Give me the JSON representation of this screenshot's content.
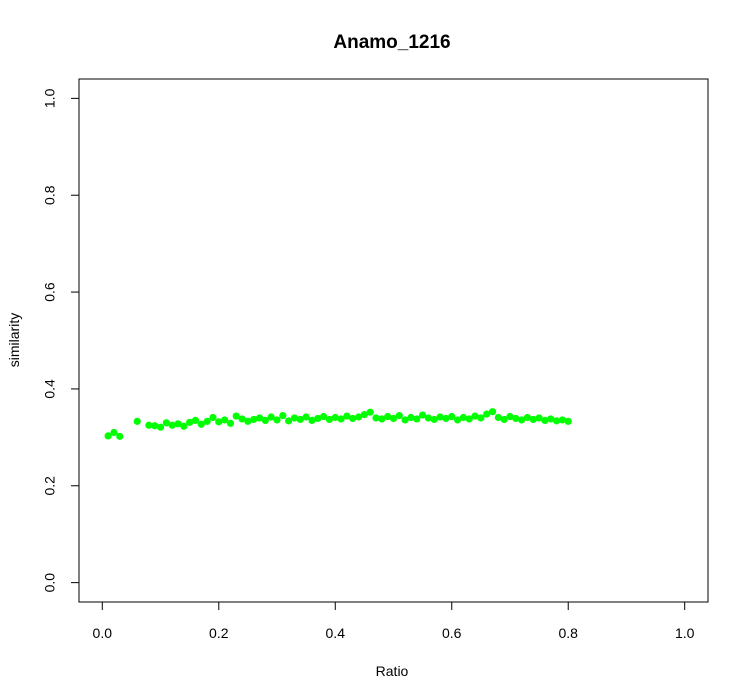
{
  "chart_data": {
    "type": "scatter",
    "title": "Anamo_1216",
    "xlabel": "Ratio",
    "ylabel": "similarity",
    "xlim": [
      -0.04,
      1.04
    ],
    "ylim": [
      -0.04,
      1.04
    ],
    "x_ticks": [
      0.0,
      0.2,
      0.4,
      0.6,
      0.8,
      1.0
    ],
    "x_tick_labels": [
      "0.0",
      "0.2",
      "0.4",
      "0.6",
      "0.8",
      "1.0"
    ],
    "y_ticks": [
      0.0,
      0.2,
      0.4,
      0.6,
      0.8,
      1.0
    ],
    "y_tick_labels": [
      "0.0",
      "0.2",
      "0.4",
      "0.6",
      "0.8",
      "1.0"
    ],
    "grid": false,
    "legend": "none",
    "marker_color": "#00ff00",
    "series": [
      {
        "color": "#00ff00",
        "points": [
          [
            0.01,
            0.303
          ],
          [
            0.02,
            0.31
          ],
          [
            0.03,
            0.302
          ],
          [
            0.06,
            0.333
          ],
          [
            0.08,
            0.325
          ],
          [
            0.09,
            0.324
          ],
          [
            0.1,
            0.321
          ],
          [
            0.11,
            0.33
          ],
          [
            0.12,
            0.325
          ],
          [
            0.13,
            0.328
          ],
          [
            0.14,
            0.323
          ],
          [
            0.15,
            0.331
          ],
          [
            0.16,
            0.335
          ],
          [
            0.17,
            0.327
          ],
          [
            0.18,
            0.333
          ],
          [
            0.19,
            0.341
          ],
          [
            0.2,
            0.332
          ],
          [
            0.21,
            0.336
          ],
          [
            0.22,
            0.329
          ],
          [
            0.23,
            0.344
          ],
          [
            0.24,
            0.338
          ],
          [
            0.25,
            0.333
          ],
          [
            0.26,
            0.337
          ],
          [
            0.27,
            0.34
          ],
          [
            0.28,
            0.335
          ],
          [
            0.29,
            0.342
          ],
          [
            0.3,
            0.336
          ],
          [
            0.31,
            0.345
          ],
          [
            0.32,
            0.334
          ],
          [
            0.33,
            0.34
          ],
          [
            0.34,
            0.337
          ],
          [
            0.35,
            0.342
          ],
          [
            0.36,
            0.335
          ],
          [
            0.37,
            0.339
          ],
          [
            0.38,
            0.343
          ],
          [
            0.39,
            0.337
          ],
          [
            0.4,
            0.341
          ],
          [
            0.41,
            0.338
          ],
          [
            0.42,
            0.344
          ],
          [
            0.43,
            0.339
          ],
          [
            0.44,
            0.342
          ],
          [
            0.45,
            0.347
          ],
          [
            0.46,
            0.352
          ],
          [
            0.47,
            0.34
          ],
          [
            0.48,
            0.338
          ],
          [
            0.49,
            0.343
          ],
          [
            0.5,
            0.339
          ],
          [
            0.51,
            0.345
          ],
          [
            0.52,
            0.336
          ],
          [
            0.53,
            0.341
          ],
          [
            0.54,
            0.338
          ],
          [
            0.55,
            0.346
          ],
          [
            0.56,
            0.34
          ],
          [
            0.57,
            0.337
          ],
          [
            0.58,
            0.342
          ],
          [
            0.59,
            0.339
          ],
          [
            0.6,
            0.343
          ],
          [
            0.61,
            0.336
          ],
          [
            0.62,
            0.341
          ],
          [
            0.63,
            0.338
          ],
          [
            0.64,
            0.344
          ],
          [
            0.65,
            0.34
          ],
          [
            0.66,
            0.348
          ],
          [
            0.67,
            0.353
          ],
          [
            0.68,
            0.341
          ],
          [
            0.69,
            0.337
          ],
          [
            0.7,
            0.343
          ],
          [
            0.71,
            0.339
          ],
          [
            0.72,
            0.336
          ],
          [
            0.73,
            0.341
          ],
          [
            0.74,
            0.337
          ],
          [
            0.75,
            0.34
          ],
          [
            0.76,
            0.335
          ],
          [
            0.77,
            0.338
          ],
          [
            0.78,
            0.334
          ],
          [
            0.79,
            0.336
          ],
          [
            0.8,
            0.333
          ]
        ]
      }
    ]
  }
}
